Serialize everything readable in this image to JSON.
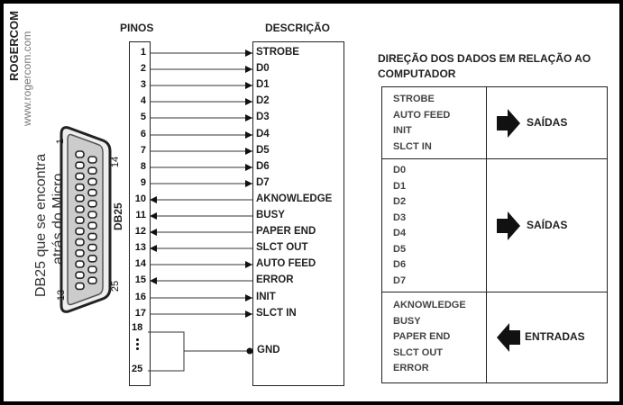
{
  "brand": {
    "name": "ROGERCOM",
    "url": "www.rogercom.com"
  },
  "headers": {
    "pins": "PINOS",
    "description": "DESCRIÇÃO"
  },
  "connector": {
    "caption_line1": "DB25 que se encontra",
    "caption_line2": "atrás do Micro",
    "pin1": "1",
    "pin13": "13",
    "pin14": "14",
    "pin25": "25",
    "db_label": "DB25"
  },
  "pins": [
    {
      "num": "1",
      "signal": "STROBE",
      "dir": "out"
    },
    {
      "num": "2",
      "signal": "D0",
      "dir": "out"
    },
    {
      "num": "3",
      "signal": "D1",
      "dir": "out"
    },
    {
      "num": "4",
      "signal": "D2",
      "dir": "out"
    },
    {
      "num": "5",
      "signal": "D3",
      "dir": "out"
    },
    {
      "num": "6",
      "signal": "D4",
      "dir": "out"
    },
    {
      "num": "7",
      "signal": "D5",
      "dir": "out"
    },
    {
      "num": "8",
      "signal": "D6",
      "dir": "out"
    },
    {
      "num": "9",
      "signal": "D7",
      "dir": "out"
    },
    {
      "num": "10",
      "signal": "AKNOWLEDGE",
      "dir": "in"
    },
    {
      "num": "11",
      "signal": "BUSY",
      "dir": "in"
    },
    {
      "num": "12",
      "signal": "PAPER END",
      "dir": "in"
    },
    {
      "num": "13",
      "signal": "SLCT OUT",
      "dir": "in"
    },
    {
      "num": "14",
      "signal": "AUTO FEED",
      "dir": "out"
    },
    {
      "num": "15",
      "signal": "ERROR",
      "dir": "in"
    },
    {
      "num": "16",
      "signal": "INIT",
      "dir": "out"
    },
    {
      "num": "17",
      "signal": "SLCT IN",
      "dir": "out"
    }
  ],
  "ground": {
    "from": "18",
    "dots": "•\n•\n•",
    "to": "25",
    "label": "GND"
  },
  "direction": {
    "title_line1": "DIREÇÃO DOS DADOS EM RELAÇÃO AO",
    "title_line2": "COMPUTADOR",
    "rows": [
      {
        "signals": [
          "STROBE",
          "AUTO FEED",
          "INIT",
          "SLCT IN"
        ],
        "label": "SAÍDAS",
        "arrow": "right"
      },
      {
        "signals": [
          "D0",
          "D1",
          "D2",
          "D3",
          "D4",
          "D5",
          "D6",
          "D7"
        ],
        "label": "SAÍDAS",
        "arrow": "right"
      },
      {
        "signals": [
          "AKNOWLEDGE",
          "BUSY",
          "PAPER END",
          "SLCT OUT",
          "ERROR"
        ],
        "label": "ENTRADAS",
        "arrow": "left"
      }
    ]
  }
}
